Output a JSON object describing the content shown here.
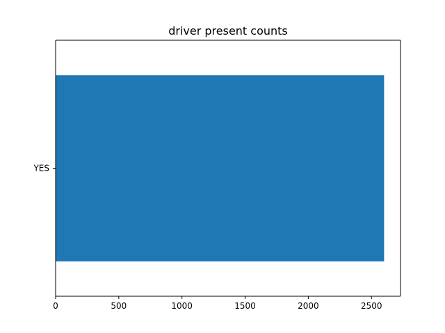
{
  "chart_data": {
    "type": "bar",
    "orientation": "horizontal",
    "title": "driver present counts",
    "xlabel": "",
    "ylabel": "",
    "categories": [
      "YES"
    ],
    "values": [
      2600
    ],
    "xlim": [
      0,
      2730
    ],
    "x_ticks": [
      0,
      500,
      1000,
      1500,
      2000,
      2500
    ],
    "grid": false,
    "bar_color": "#1f77b4"
  }
}
